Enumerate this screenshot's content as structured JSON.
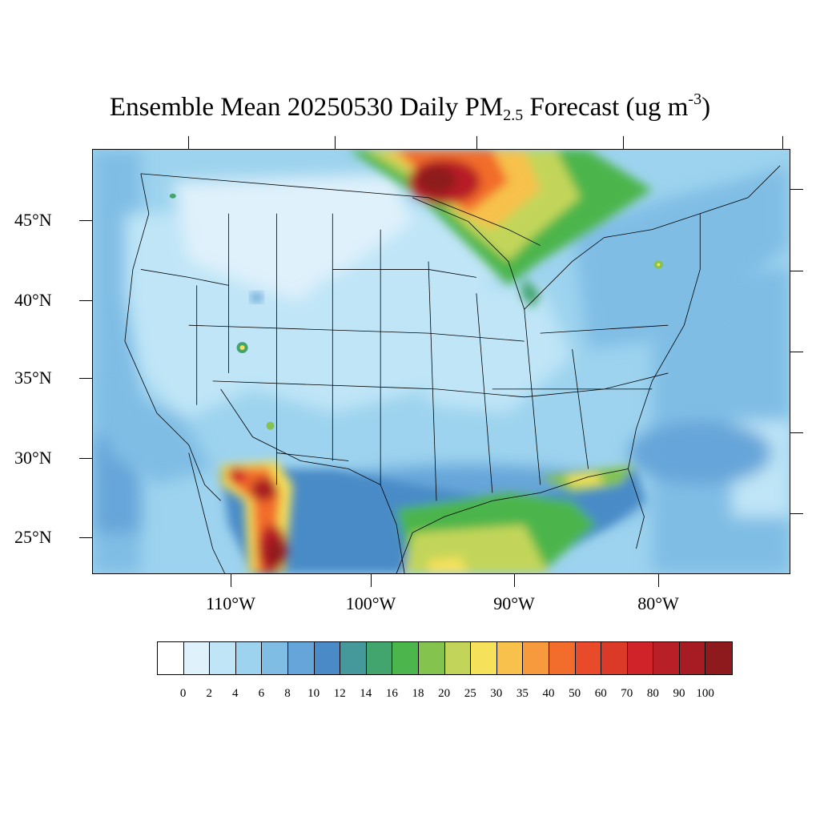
{
  "title": {
    "prefix": "Ensemble Mean 20250530 Daily PM",
    "subscript": "2.5",
    "middle": " Forecast (ug m",
    "superscript": "-3",
    "suffix": ")"
  },
  "latitude_labels": [
    "45°N",
    "40°N",
    "35°N",
    "30°N",
    "25°N"
  ],
  "longitude_labels": [
    "110°W",
    "100°W",
    "90°W",
    "80°W"
  ],
  "colorbar": {
    "labels": [
      "0",
      "2",
      "4",
      "6",
      "8",
      "10",
      "12",
      "14",
      "16",
      "18",
      "20",
      "25",
      "30",
      "35",
      "40",
      "50",
      "60",
      "70",
      "80",
      "90",
      "100"
    ],
    "colors": [
      "#ffffff",
      "#dff1fb",
      "#bfe5f7",
      "#9dd3ee",
      "#80bde5",
      "#66a5d9",
      "#4a8bc7",
      "#46999b",
      "#43a56e",
      "#4cb54b",
      "#84c34e",
      "#c2d55a",
      "#f5e15a",
      "#f7c14b",
      "#f69a3d",
      "#f26c2c",
      "#e84a2a",
      "#dc3a28",
      "#cf2229",
      "#b81f26",
      "#a71c22",
      "#8e1a1e"
    ]
  },
  "map": {
    "region": "Continental United States",
    "variable": "PM2.5",
    "units": "ug m-3",
    "date": "20250530"
  }
}
